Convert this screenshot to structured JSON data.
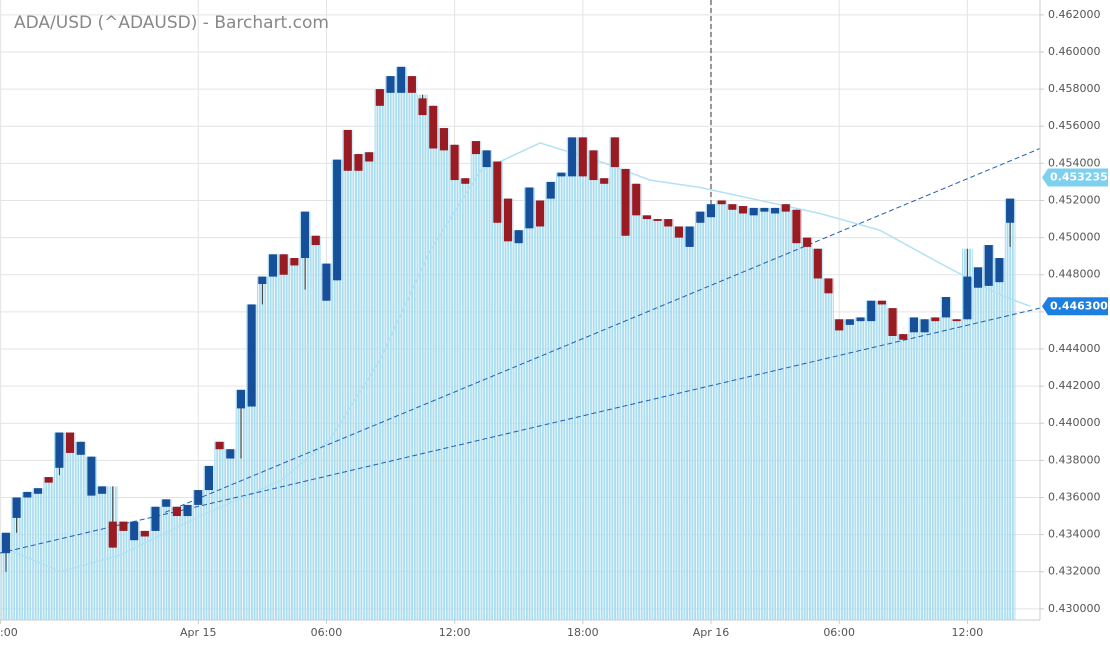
{
  "chart_data": {
    "type": "candlestick",
    "title": "ADA/USD (^ADAUSD) - Barchart.com",
    "up_color": "#164f9a",
    "down_color": "#9a1b22",
    "area_color": "#a9dcef",
    "open": [
      0.433,
      0.4349,
      0.436,
      0.4362,
      0.4371,
      0.4376,
      0.4395,
      0.4383,
      0.4361,
      0.4362,
      0.4347,
      0.4347,
      0.4337,
      0.4342,
      0.4342,
      0.4355,
      0.4355,
      0.435,
      0.4356,
      0.4364,
      0.439,
      0.4381,
      0.4408,
      0.4409,
      0.4475,
      0.4479,
      0.4491,
      0.4489,
      0.4489,
      0.4501,
      0.4466,
      0.4477,
      0.4558,
      0.4545,
      0.4546,
      0.458,
      0.4578,
      0.4578,
      0.4587,
      0.4575,
      0.4571,
      0.4559,
      0.455,
      0.4532,
      0.4552,
      0.4538,
      0.4541,
      0.4521,
      0.4497,
      0.4505,
      0.452,
      0.4521,
      0.4533,
      0.4533,
      0.4554,
      0.4547,
      0.4532,
      0.4554,
      0.4537,
      0.4529,
      0.4512,
      0.451,
      0.451,
      0.4506,
      0.4495,
      0.4508,
      0.4511,
      0.452,
      0.4518,
      0.4517,
      0.4512,
      0.4514,
      0.4513,
      0.4518,
      0.4515,
      0.45,
      0.4494,
      0.4478,
      0.4456,
      0.4453,
      0.4455,
      0.4455,
      0.4466,
      0.4462,
      0.4448,
      0.4449,
      0.4449,
      0.4457,
      0.4457,
      0.4456,
      0.4456,
      0.4473,
      0.4474,
      0.4476,
      0.4508
    ],
    "high": [
      0.4341,
      0.436,
      0.4363,
      0.4365,
      0.4371,
      0.4395,
      0.4395,
      0.439,
      0.4382,
      0.4366,
      0.4366,
      0.4347,
      0.4347,
      0.4342,
      0.4355,
      0.4359,
      0.4355,
      0.4356,
      0.4364,
      0.4377,
      0.439,
      0.4386,
      0.4418,
      0.4464,
      0.4479,
      0.4491,
      0.4491,
      0.4489,
      0.4514,
      0.4501,
      0.4486,
      0.4542,
      0.4558,
      0.4545,
      0.4546,
      0.458,
      0.4587,
      0.4592,
      0.4587,
      0.4577,
      0.4571,
      0.4559,
      0.455,
      0.4532,
      0.4552,
      0.4547,
      0.4541,
      0.4521,
      0.4504,
      0.4527,
      0.452,
      0.453,
      0.4535,
      0.4554,
      0.4554,
      0.4547,
      0.4532,
      0.4554,
      0.4537,
      0.4529,
      0.4512,
      0.451,
      0.451,
      0.4506,
      0.4506,
      0.4514,
      0.4518,
      0.452,
      0.4518,
      0.4517,
      0.4516,
      0.4516,
      0.4516,
      0.4518,
      0.4515,
      0.45,
      0.4494,
      0.4478,
      0.4456,
      0.4456,
      0.4457,
      0.4466,
      0.4466,
      0.4462,
      0.4448,
      0.4457,
      0.4456,
      0.4457,
      0.4468,
      0.4456,
      0.4494,
      0.4484,
      0.4496,
      0.4489,
      0.4521
    ],
    "low": [
      0.432,
      0.4341,
      0.436,
      0.4362,
      0.4368,
      0.4372,
      0.4384,
      0.4383,
      0.4361,
      0.4362,
      0.4333,
      0.4342,
      0.4337,
      0.4339,
      0.4342,
      0.4355,
      0.435,
      0.435,
      0.4356,
      0.4364,
      0.4386,
      0.4381,
      0.4381,
      0.4409,
      0.4464,
      0.4479,
      0.448,
      0.4485,
      0.4472,
      0.4496,
      0.4466,
      0.4477,
      0.4536,
      0.4536,
      0.4541,
      0.4571,
      0.4578,
      0.4578,
      0.4578,
      0.4566,
      0.4548,
      0.4547,
      0.4531,
      0.4529,
      0.4545,
      0.4538,
      0.4508,
      0.4498,
      0.4497,
      0.4505,
      0.4506,
      0.4521,
      0.4533,
      0.4533,
      0.4533,
      0.4531,
      0.4529,
      0.4538,
      0.4501,
      0.4512,
      0.451,
      0.4509,
      0.4506,
      0.45,
      0.4495,
      0.4508,
      0.4511,
      0.4518,
      0.4515,
      0.4513,
      0.4512,
      0.4514,
      0.4513,
      0.4514,
      0.4497,
      0.4495,
      0.4478,
      0.447,
      0.445,
      0.4453,
      0.4455,
      0.4455,
      0.4464,
      0.4447,
      0.4445,
      0.4449,
      0.4449,
      0.4455,
      0.4457,
      0.4455,
      0.4456,
      0.4473,
      0.4474,
      0.4476,
      0.4495
    ],
    "close": [
      0.4341,
      0.436,
      0.4363,
      0.4365,
      0.4368,
      0.4395,
      0.4384,
      0.439,
      0.4382,
      0.4366,
      0.4333,
      0.4342,
      0.4347,
      0.4339,
      0.4355,
      0.4359,
      0.435,
      0.4356,
      0.4364,
      0.4377,
      0.4386,
      0.4386,
      0.4418,
      0.4464,
      0.4479,
      0.4491,
      0.448,
      0.4485,
      0.4514,
      0.4496,
      0.4486,
      0.4542,
      0.4536,
      0.4536,
      0.4541,
      0.4571,
      0.4587,
      0.4592,
      0.4578,
      0.4566,
      0.4548,
      0.4547,
      0.4531,
      0.4529,
      0.4545,
      0.4547,
      0.4508,
      0.4498,
      0.4504,
      0.4527,
      0.4506,
      0.453,
      0.4535,
      0.4554,
      0.4533,
      0.4531,
      0.4529,
      0.4538,
      0.4501,
      0.4512,
      0.451,
      0.4509,
      0.4506,
      0.45,
      0.4506,
      0.4514,
      0.4518,
      0.4518,
      0.4515,
      0.4513,
      0.4516,
      0.4516,
      0.4516,
      0.4514,
      0.4497,
      0.4495,
      0.4478,
      0.447,
      0.445,
      0.4456,
      0.4457,
      0.4466,
      0.4464,
      0.4447,
      0.4445,
      0.4457,
      0.4456,
      0.4455,
      0.4468,
      0.4455,
      0.4479,
      0.4484,
      0.4496,
      0.4489,
      0.4521
    ],
    "moving_average": {
      "color": "#b3e1f4",
      "x": [
        -0.6,
        5.1,
        10.7,
        18.2,
        25.7,
        30.3,
        35,
        39.7,
        44.4,
        50,
        55.6,
        60.3,
        65,
        70.6,
        76.2,
        81.8,
        87.5,
        93.1,
        95.9
      ],
      "y": [
        0.4334,
        0.432,
        0.4329,
        0.435,
        0.4369,
        0.4391,
        0.4434,
        0.4493,
        0.4536,
        0.4551,
        0.4541,
        0.4531,
        0.4527,
        0.452,
        0.4513,
        0.4504,
        0.4486,
        0.4469,
        0.4463
      ]
    },
    "trend_lines": [
      {
        "color": "#1f5fb0",
        "x": [
          -0.6,
          96.8
        ],
        "y": [
          0.433,
          0.4462
        ]
      },
      {
        "color": "#1f5fb0",
        "x": [
          14.9,
          96.8
        ],
        "y": [
          0.4352,
          0.4548
        ]
      }
    ],
    "price_labels": [
      {
        "value": 0.453235,
        "color": "#7fd0ee"
      },
      {
        "value": 0.4463,
        "label": "0.446300",
        "color": "#1d7fe0"
      }
    ],
    "xlim": [
      -0.56,
      96.8
    ],
    "ylim": [
      0.4294,
      0.4628
    ],
    "xticks": [
      {
        "value": -0.5,
        "label": ":00"
      },
      {
        "value": 18,
        "label": "Apr 15"
      },
      {
        "value": 30,
        "label": "06:00"
      },
      {
        "value": 42,
        "label": "12:00"
      },
      {
        "value": 54,
        "label": "18:00"
      },
      {
        "value": 66,
        "label": "Apr 16"
      },
      {
        "value": 78,
        "label": "06:00"
      },
      {
        "value": 90,
        "label": "12:00"
      }
    ],
    "yticks": [
      {
        "value": 0.43,
        "label": "0.430000"
      },
      {
        "value": 0.432,
        "label": "0.432000"
      },
      {
        "value": 0.434,
        "label": "0.434000"
      },
      {
        "value": 0.436,
        "label": "0.436000"
      },
      {
        "value": 0.438,
        "label": "0.438000"
      },
      {
        "value": 0.44,
        "label": "0.440000"
      },
      {
        "value": 0.442,
        "label": "0.442000"
      },
      {
        "value": 0.444,
        "label": "0.444000"
      },
      {
        "value": 0.446,
        "label": "0.446000"
      },
      {
        "value": 0.448,
        "label": "0.448000"
      },
      {
        "value": 0.45,
        "label": "0.450000"
      },
      {
        "value": 0.452,
        "label": "0.452000"
      },
      {
        "value": 0.454,
        "label": "0.454000"
      },
      {
        "value": 0.456,
        "label": "0.456000"
      },
      {
        "value": 0.458,
        "label": "0.458000"
      },
      {
        "value": 0.46,
        "label": "0.460000"
      },
      {
        "value": 0.462,
        "label": "0.462000"
      }
    ],
    "grid": true
  }
}
